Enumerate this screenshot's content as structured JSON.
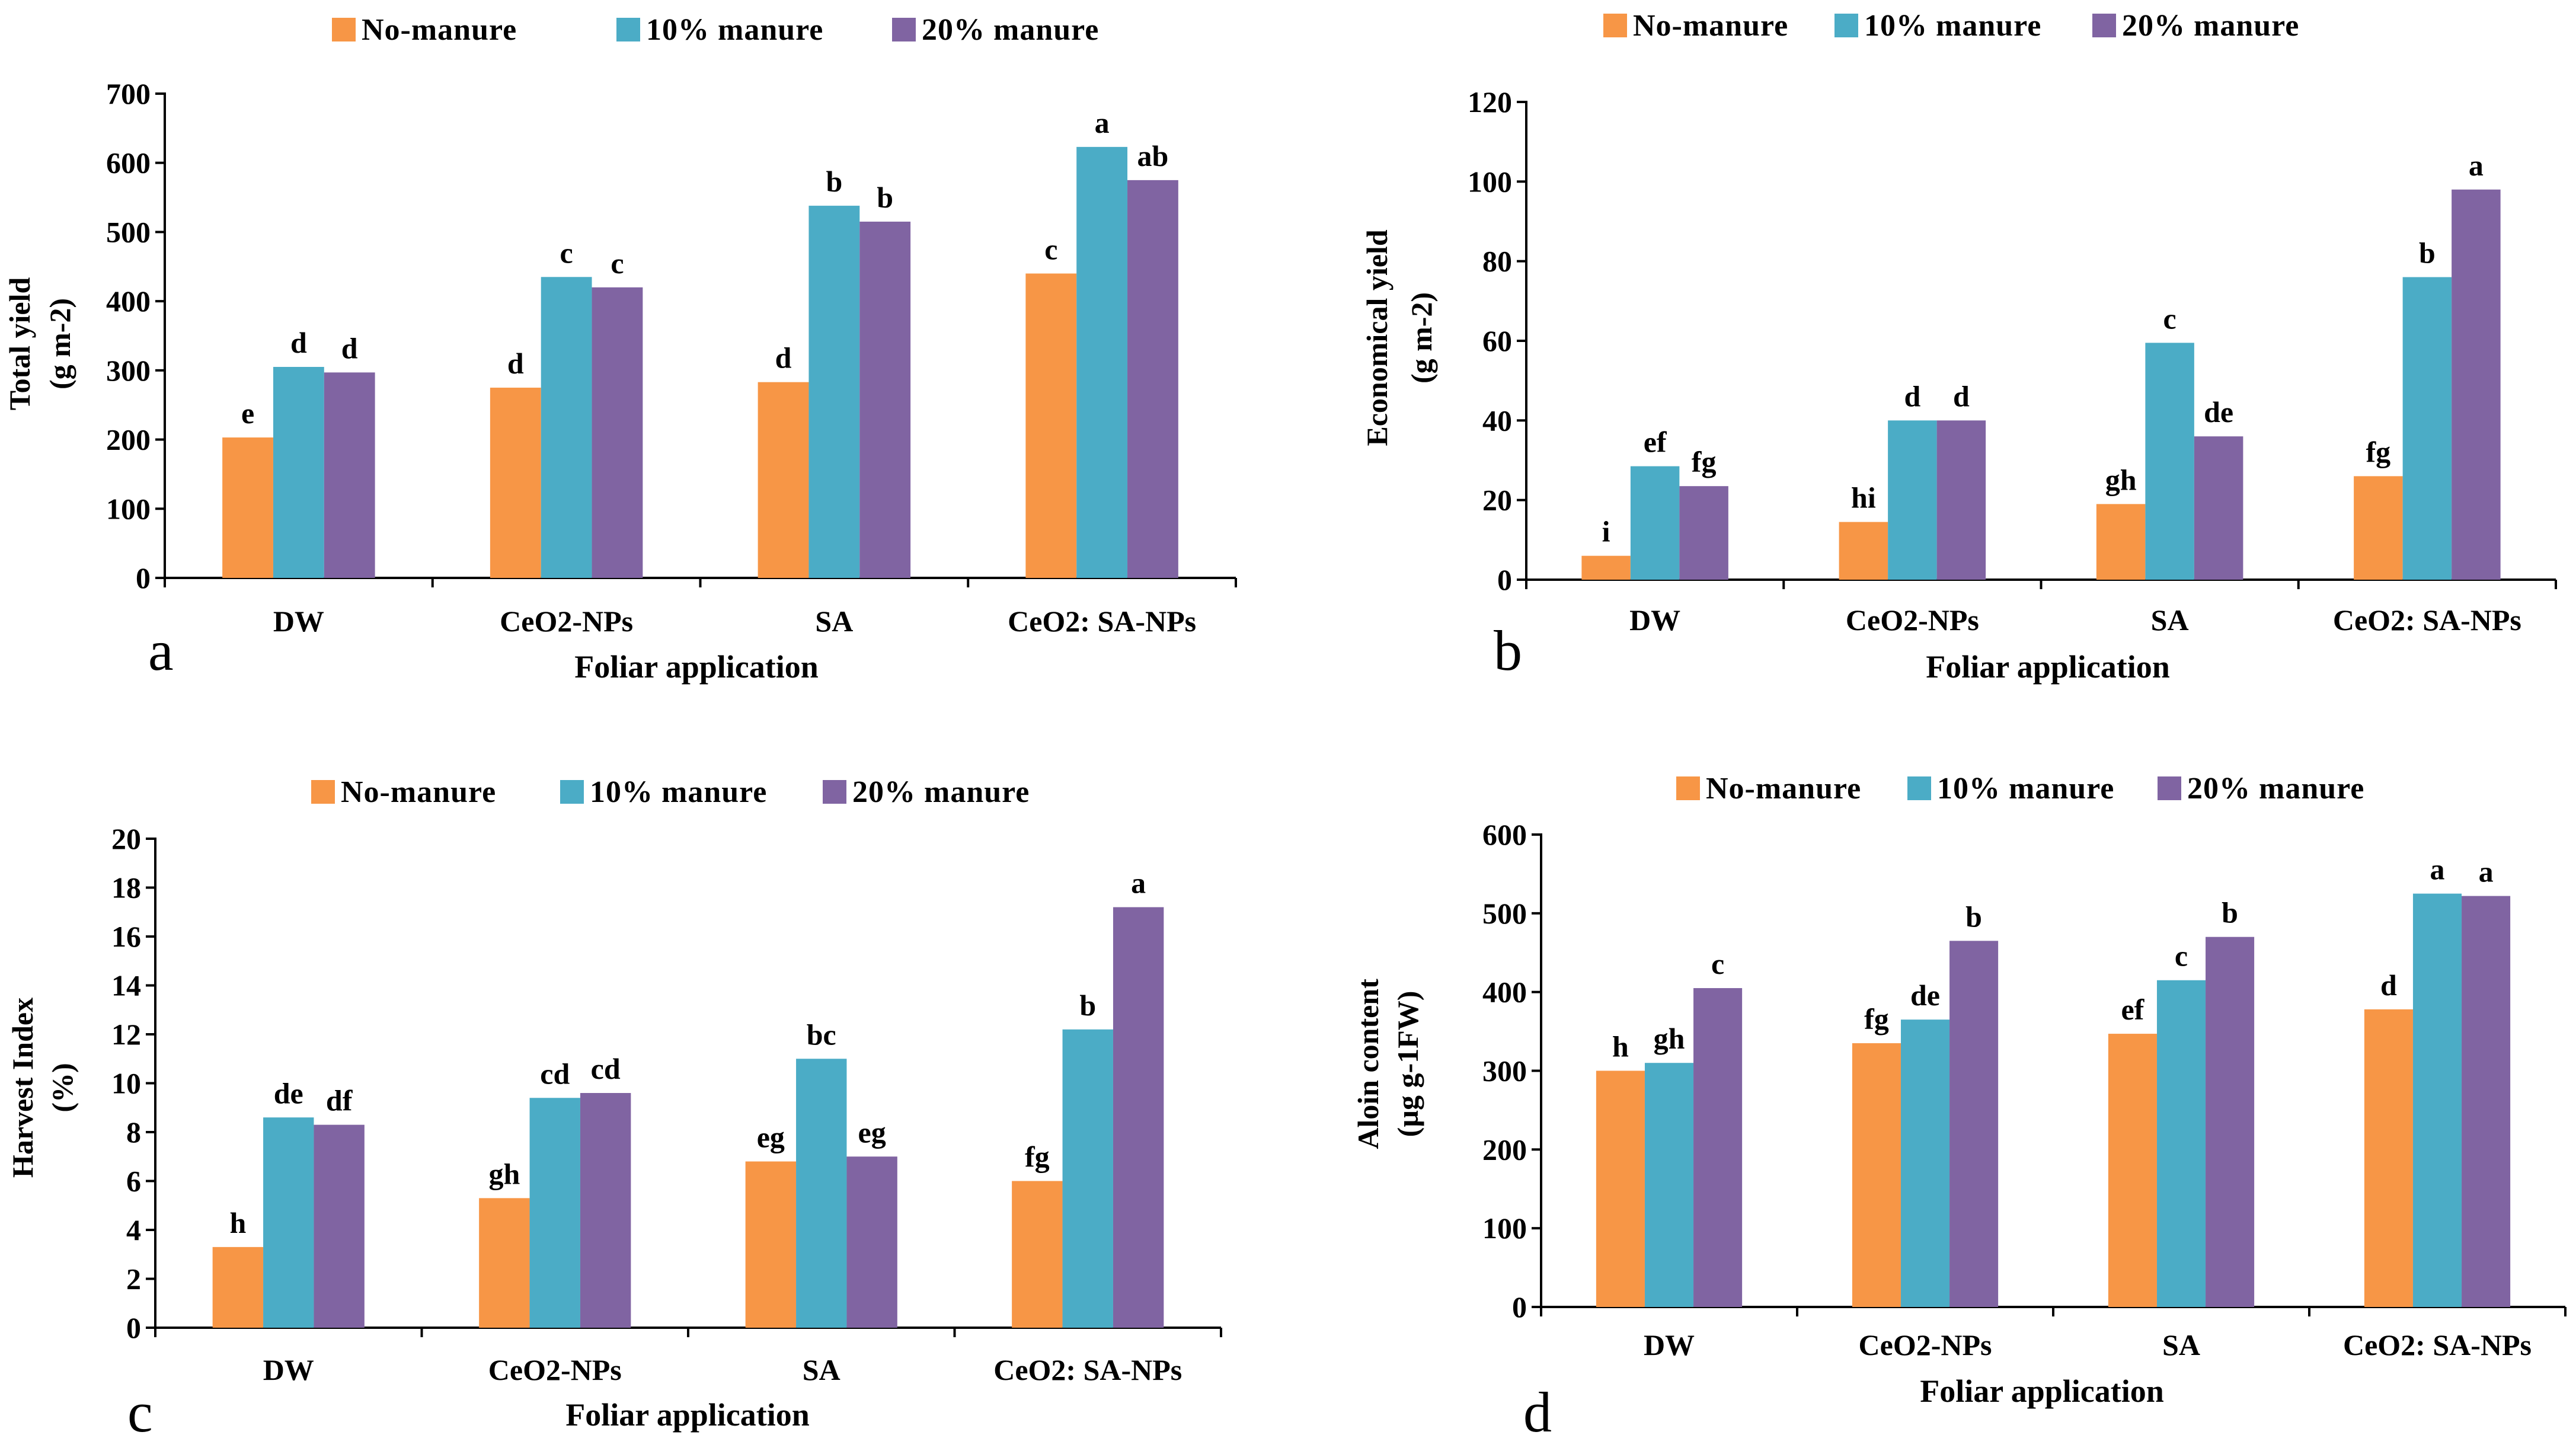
{
  "colors": {
    "No-manure": "#F79646",
    "10% manure": "#4BACC6",
    "20% manure": "#8064A2",
    "axis": "#000000"
  },
  "chart_data": [
    {
      "type": "bar",
      "panel": "a",
      "xlabel": "Foliar application",
      "ylabel_lines": [
        "Total  yield",
        "(g m-2)"
      ],
      "ylim": [
        0,
        700
      ],
      "ytick_step": 100,
      "categories": [
        "DW",
        "CeO2-NPs",
        "SA",
        "CeO2: SA-NPs"
      ],
      "series": [
        {
          "name": "No-manure",
          "values": [
            203,
            275,
            283,
            440
          ],
          "labels": [
            "e",
            "d",
            "d",
            "c"
          ]
        },
        {
          "name": "10% manure",
          "values": [
            305,
            435,
            538,
            623
          ],
          "labels": [
            "d",
            "c",
            "b",
            "a"
          ]
        },
        {
          "name": "20% manure",
          "values": [
            297,
            420,
            515,
            575
          ],
          "labels": [
            "d",
            "c",
            "b",
            "ab"
          ]
        }
      ]
    },
    {
      "type": "bar",
      "panel": "b",
      "xlabel": "Foliar application",
      "ylabel_lines": [
        "Economical  yield",
        "(g m-2)"
      ],
      "ylim": [
        0,
        120
      ],
      "ytick_step": 20,
      "categories": [
        "DW",
        "CeO2-NPs",
        "SA",
        "CeO2: SA-NPs"
      ],
      "series": [
        {
          "name": "No-manure",
          "values": [
            6,
            14.5,
            19,
            26
          ],
          "labels": [
            "i",
            "hi",
            "gh",
            "fg"
          ]
        },
        {
          "name": "10% manure",
          "values": [
            28.5,
            40,
            59.5,
            76
          ],
          "labels": [
            "ef",
            "d",
            "c",
            "b"
          ]
        },
        {
          "name": "20% manure",
          "values": [
            23.5,
            40,
            36,
            98
          ],
          "labels": [
            "fg",
            "d",
            "de",
            "a"
          ]
        }
      ]
    },
    {
      "type": "bar",
      "panel": "c",
      "xlabel": "Foliar application",
      "ylabel_lines": [
        "Harvest  Index",
        "(%)"
      ],
      "ylim": [
        0,
        20
      ],
      "ytick_step": 2,
      "categories": [
        "DW",
        "CeO2-NPs",
        "SA",
        "CeO2: SA-NPs"
      ],
      "series": [
        {
          "name": "No-manure",
          "values": [
            3.3,
            5.3,
            6.8,
            6.0
          ],
          "labels": [
            "h",
            "gh",
            "eg",
            "fg"
          ]
        },
        {
          "name": "10% manure",
          "values": [
            8.6,
            9.4,
            11.0,
            12.2
          ],
          "labels": [
            "de",
            "cd",
            "bc",
            "b"
          ]
        },
        {
          "name": "20% manure",
          "values": [
            8.3,
            9.6,
            7.0,
            17.2
          ],
          "labels": [
            "df",
            "cd",
            "eg",
            "a"
          ]
        }
      ]
    },
    {
      "type": "bar",
      "panel": "d",
      "xlabel": "Foliar application",
      "ylabel_lines": [
        "Aloin content",
        "(µg g-1FW)"
      ],
      "ylim": [
        0,
        600
      ],
      "ytick_step": 100,
      "categories": [
        "DW",
        "CeO2-NPs",
        "SA",
        "CeO2: SA-NPs"
      ],
      "series": [
        {
          "name": "No-manure",
          "values": [
            300,
            335,
            347,
            378
          ],
          "labels": [
            "h",
            "fg",
            "ef",
            "d"
          ]
        },
        {
          "name": "10% manure",
          "values": [
            310,
            365,
            415,
            525
          ],
          "labels": [
            "gh",
            "de",
            "c",
            "a"
          ]
        },
        {
          "name": "20% manure",
          "values": [
            405,
            465,
            470,
            522
          ],
          "labels": [
            "c",
            "b",
            "b",
            "a"
          ]
        }
      ]
    }
  ]
}
